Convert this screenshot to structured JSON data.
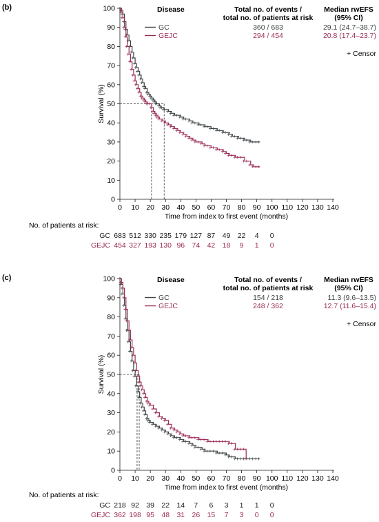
{
  "chart_data": [
    {
      "type": "line",
      "panel_label": "(b)",
      "title": "",
      "xlabel": "Time from index to first event (months)",
      "ylabel": "Survival (%)",
      "xlim": [
        0,
        140
      ],
      "ylim": [
        0,
        100
      ],
      "x_ticks": [
        "0",
        "10",
        "20",
        "30",
        "40",
        "50",
        "60",
        "70",
        "80",
        "90",
        "100",
        "110",
        "120",
        "130",
        "140"
      ],
      "y_ticks": [
        "0",
        "10",
        "20",
        "30",
        "40",
        "50",
        "60",
        "70",
        "80",
        "90",
        "100"
      ],
      "legend": {
        "disease_header": "Disease",
        "events_header_line1": "Total no. of events /",
        "events_header_line2": "total no. of patients at risk",
        "median_header_line1": "Median rwEFS",
        "median_header_line2": "(95% CI)",
        "censor_label": "+ Censor"
      },
      "series": [
        {
          "name": "GC",
          "color": "#3d4346",
          "events": "360 / 683",
          "median": "29.1 (24.7–38.7)",
          "x": [
            0,
            1,
            2,
            3,
            4,
            5,
            6,
            7,
            8,
            9,
            10,
            11,
            12,
            13,
            14,
            15,
            16,
            17,
            18,
            19,
            20,
            21,
            22,
            23,
            24,
            25,
            26,
            27,
            28,
            29,
            30,
            32,
            34,
            36,
            38,
            40,
            42,
            44,
            46,
            48,
            50,
            52,
            54,
            56,
            58,
            60,
            62,
            64,
            66,
            68,
            70,
            72,
            74,
            76,
            78,
            80,
            82,
            84,
            86,
            88,
            90,
            92
          ],
          "y": [
            100,
            99,
            97,
            93,
            89,
            86,
            83,
            80,
            77,
            74,
            71,
            69,
            67,
            65,
            63,
            61,
            59,
            58,
            56,
            55,
            54,
            53,
            52,
            51,
            50,
            50,
            49,
            48,
            48,
            47,
            47,
            46,
            45,
            44,
            44,
            43,
            42,
            42,
            41,
            40,
            40,
            39,
            39,
            38,
            38,
            37,
            37,
            36,
            36,
            35,
            35,
            34,
            33,
            33,
            32,
            32,
            31,
            31,
            30,
            30,
            30,
            30
          ]
        },
        {
          "name": "GEJC",
          "color": "#9b2b57",
          "events": "294 / 454",
          "median": "20.8 (17.4–23.7)",
          "x": [
            0,
            1,
            2,
            3,
            4,
            5,
            6,
            7,
            8,
            9,
            10,
            11,
            12,
            13,
            14,
            15,
            16,
            17,
            18,
            19,
            20,
            21,
            22,
            23,
            24,
            25,
            26,
            28,
            30,
            32,
            34,
            36,
            38,
            40,
            42,
            44,
            46,
            48,
            50,
            52,
            54,
            56,
            58,
            60,
            62,
            64,
            66,
            68,
            70,
            72,
            74,
            76,
            78,
            80,
            82,
            84,
            86,
            88,
            90,
            92
          ],
          "y": [
            100,
            98,
            95,
            90,
            85,
            80,
            76,
            72,
            68,
            65,
            62,
            60,
            58,
            56,
            54,
            53,
            52,
            51,
            50,
            50,
            50,
            48,
            46,
            45,
            44,
            43,
            42,
            41,
            40,
            39,
            38,
            37,
            36,
            35,
            34,
            33,
            32,
            31,
            30,
            30,
            29,
            28,
            28,
            27,
            27,
            26,
            26,
            25,
            24,
            23,
            23,
            22,
            22,
            22,
            20,
            20,
            18,
            17,
            17,
            17
          ]
        }
      ],
      "median_lines": [
        {
          "x": 29.1,
          "y": 50,
          "series": "GC"
        },
        {
          "x": 20.8,
          "y": 50,
          "series": "GEJC"
        }
      ],
      "at_risk": {
        "title": "No. of patients at risk:",
        "times": [
          0,
          10,
          20,
          30,
          40,
          50,
          60,
          70,
          80,
          90,
          100
        ],
        "rows": [
          {
            "label": "GC",
            "color": "#1a1a1a",
            "values": [
              "683",
              "512",
              "330",
              "235",
              "179",
              "127",
              "87",
              "49",
              "22",
              "4",
              "0"
            ]
          },
          {
            "label": "GEJC",
            "color": "#9b2b57",
            "values": [
              "454",
              "327",
              "193",
              "130",
              "96",
              "74",
              "42",
              "18",
              "9",
              "1",
              "0"
            ]
          }
        ]
      }
    },
    {
      "type": "line",
      "panel_label": "(c)",
      "title": "",
      "xlabel": "Time from index to first event (months)",
      "ylabel": "Survival (%)",
      "xlim": [
        0,
        140
      ],
      "ylim": [
        0,
        100
      ],
      "x_ticks": [
        "0",
        "10",
        "20",
        "30",
        "40",
        "50",
        "60",
        "70",
        "80",
        "90",
        "100",
        "110",
        "120",
        "130",
        "140"
      ],
      "y_ticks": [
        "0",
        "10",
        "20",
        "30",
        "40",
        "50",
        "60",
        "70",
        "80",
        "90",
        "100"
      ],
      "legend": {
        "disease_header": "Disease",
        "events_header_line1": "Total no. of events /",
        "events_header_line2": "total no. of patients at risk",
        "median_header_line1": "Median rwEFS",
        "median_header_line2": "(95% CI)",
        "censor_label": "+ Censor"
      },
      "series": [
        {
          "name": "GC",
          "color": "#3d4346",
          "events": "154 / 218",
          "median": "11.3 (9.6–13.5)",
          "x": [
            0,
            1,
            2,
            3,
            4,
            5,
            6,
            7,
            8,
            9,
            10,
            11,
            12,
            13,
            14,
            15,
            16,
            17,
            18,
            19,
            20,
            22,
            24,
            26,
            28,
            30,
            32,
            34,
            36,
            38,
            40,
            42,
            44,
            46,
            48,
            50,
            52,
            54,
            56,
            58,
            60,
            62,
            64,
            66,
            68,
            70,
            72,
            74,
            76,
            78,
            80,
            82,
            84,
            86,
            88,
            90,
            92
          ],
          "y": [
            100,
            97,
            92,
            86,
            79,
            73,
            67,
            62,
            57,
            52,
            49,
            44,
            41,
            38,
            35,
            33,
            31,
            29,
            27,
            26,
            25,
            24,
            23,
            22,
            21,
            20,
            19,
            18,
            17,
            17,
            16,
            15,
            15,
            14,
            13,
            12,
            12,
            11,
            10,
            10,
            10,
            10,
            9,
            9,
            9,
            8,
            7,
            7,
            6,
            6,
            6,
            6,
            6,
            6,
            6,
            6,
            6
          ]
        },
        {
          "name": "GEJC",
          "color": "#9b2b57",
          "events": "248 / 362",
          "median": "12.7 (11.6–15.4)",
          "x": [
            0,
            1,
            2,
            3,
            4,
            5,
            6,
            7,
            8,
            9,
            10,
            11,
            12,
            13,
            14,
            15,
            16,
            17,
            18,
            19,
            20,
            22,
            24,
            26,
            28,
            30,
            32,
            34,
            36,
            38,
            40,
            42,
            44,
            46,
            48,
            50,
            52,
            54,
            56,
            58,
            60,
            62,
            64,
            66,
            68,
            70,
            72,
            74,
            76,
            78,
            80,
            82,
            83
          ],
          "y": [
            100,
            98,
            95,
            90,
            84,
            78,
            73,
            68,
            64,
            60,
            56,
            52,
            49,
            46,
            44,
            42,
            40,
            38,
            36,
            35,
            34,
            32,
            30,
            28,
            27,
            26,
            24,
            22,
            21,
            20,
            19,
            18,
            18,
            17,
            17,
            17,
            16,
            16,
            16,
            15,
            15,
            15,
            15,
            15,
            15,
            15,
            14,
            14,
            11,
            11,
            11,
            11,
            6
          ]
        }
      ],
      "median_lines": [
        {
          "x": 11.3,
          "y": 50,
          "series": "GC"
        },
        {
          "x": 12.7,
          "y": 50,
          "series": "GEJC"
        }
      ],
      "at_risk": {
        "title": "No. of patients at risk:",
        "times": [
          0,
          10,
          20,
          30,
          40,
          50,
          60,
          70,
          80,
          90,
          100
        ],
        "rows": [
          {
            "label": "GC",
            "color": "#1a1a1a",
            "values": [
              "218",
              "92",
              "39",
              "22",
              "14",
              "7",
              "6",
              "3",
              "1",
              "1",
              "0"
            ]
          },
          {
            "label": "GEJC",
            "color": "#9b2b57",
            "values": [
              "362",
              "198",
              "95",
              "48",
              "31",
              "26",
              "15",
              "7",
              "3",
              "0",
              "0"
            ]
          }
        ]
      }
    }
  ]
}
